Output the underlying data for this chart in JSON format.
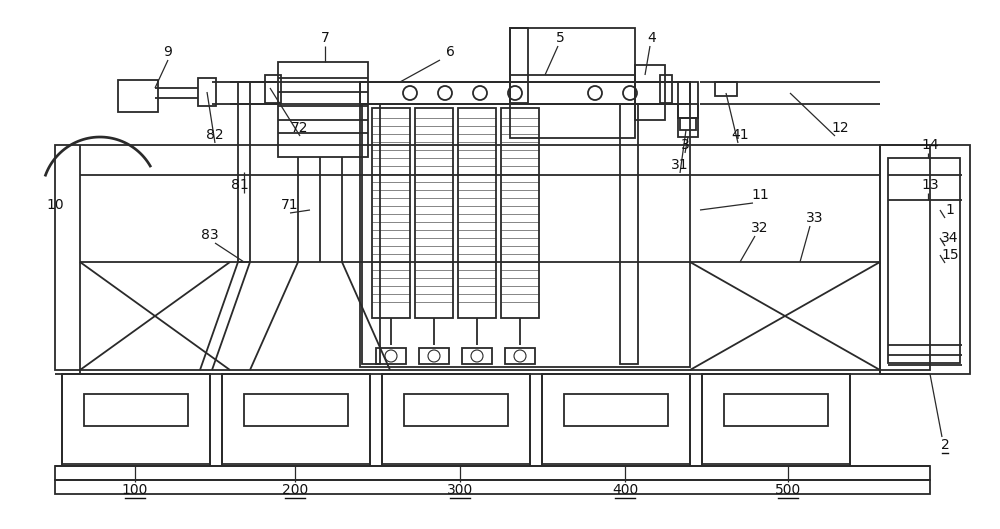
{
  "bg_color": "#ffffff",
  "line_color": "#2a2a2a",
  "label_color": "#111111",
  "lw": 1.3,
  "thin": 0.7,
  "figsize": [
    10.0,
    5.29
  ],
  "dpi": 100
}
